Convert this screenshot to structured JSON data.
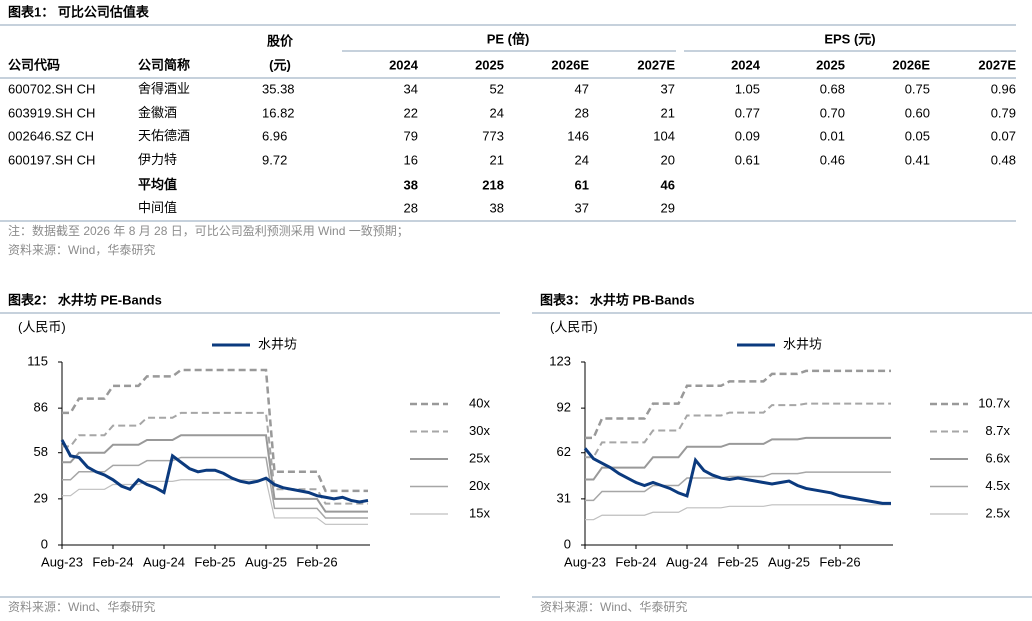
{
  "table": {
    "title": "图表1：  可比公司估值表",
    "group_headers": [
      "股价",
      "PE (倍)",
      "EPS (元)"
    ],
    "columns": [
      "公司代码",
      "公司简称",
      "(元)",
      "2024",
      "2025",
      "2026E",
      "2027E",
      "2024",
      "2025",
      "2026E",
      "2027E"
    ],
    "rows": [
      [
        "600702.SH CH",
        "舍得酒业",
        "35.38",
        "34",
        "52",
        "47",
        "37",
        "1.05",
        "0.68",
        "0.75",
        "0.96"
      ],
      [
        "603919.SH CH",
        "金徽酒",
        "16.82",
        "22",
        "24",
        "28",
        "21",
        "0.77",
        "0.70",
        "0.60",
        "0.79"
      ],
      [
        "002646.SZ CH",
        "天佑德酒",
        "6.96",
        "79",
        "773",
        "146",
        "104",
        "0.09",
        "0.01",
        "0.05",
        "0.07"
      ],
      [
        "600197.SH CH",
        "伊力特",
        "9.72",
        "16",
        "21",
        "24",
        "20",
        "0.61",
        "0.46",
        "0.41",
        "0.48"
      ],
      [
        null,
        "平均值",
        null,
        "38",
        "218",
        "61",
        "46",
        null,
        null,
        null,
        null
      ],
      [
        null,
        "中间值",
        null,
        "28",
        "38",
        "37",
        "29",
        null,
        null,
        null,
        null
      ]
    ],
    "note": "注：数据截至 2026 年 8 月 28 日，可比公司盈利预测采用 Wind 一致预期；",
    "source": "资料来源：Wind，华泰研究"
  },
  "chart_data": [
    {
      "type": "line",
      "title": "图表2：  水井坊 PE-Bands",
      "ylabel": "(人民币)",
      "legend": "right",
      "source": "资料来源：Wind、华泰研究",
      "categories": [
        "Aug-23",
        null,
        null,
        null,
        null,
        null,
        "Feb-24",
        null,
        null,
        null,
        null,
        null,
        "Aug-24",
        null,
        null,
        null,
        null,
        null,
        "Feb-25",
        null,
        null,
        null,
        null,
        null,
        "Aug-25",
        null,
        null,
        null,
        null,
        null,
        "Feb-26",
        null,
        null,
        null,
        null,
        null,
        null
      ],
      "ylim": [
        0,
        115
      ],
      "yticks": [
        0,
        29,
        58,
        86,
        115
      ],
      "series": [
        {
          "name": "水井坊",
          "color": "#0b3a7e",
          "style": "solid",
          "width": 3,
          "values": [
            66,
            56,
            55,
            49,
            46,
            44,
            41,
            37,
            35,
            41,
            38,
            36,
            33,
            56,
            52,
            48,
            46,
            47,
            47,
            45,
            42,
            40,
            39,
            40,
            42,
            38,
            36,
            35,
            34,
            33,
            31,
            30,
            29,
            30,
            28,
            27,
            28
          ]
        },
        {
          "name": "40x",
          "color": "#999999",
          "style": "dashed",
          "width": 2.5,
          "values": [
            83,
            83,
            92,
            92,
            92,
            92,
            100,
            100,
            100,
            100,
            106,
            106,
            106,
            106,
            110,
            110,
            110,
            110,
            110,
            110,
            110,
            110,
            110,
            110,
            110,
            46,
            46,
            46,
            46,
            46,
            46,
            34,
            34,
            34,
            34,
            34,
            34
          ]
        },
        {
          "name": "30x",
          "color": "#a6a6a6",
          "style": "dashed",
          "width": 2,
          "values": [
            62,
            62,
            69,
            69,
            69,
            69,
            75,
            75,
            75,
            75,
            80,
            80,
            80,
            80,
            83,
            83,
            83,
            83,
            83,
            83,
            83,
            83,
            83,
            83,
            83,
            35,
            35,
            35,
            35,
            35,
            35,
            26,
            26,
            26,
            26,
            26,
            26
          ]
        },
        {
          "name": "25x",
          "color": "#999999",
          "style": "solid",
          "width": 2,
          "values": [
            52,
            52,
            58,
            58,
            58,
            58,
            63,
            63,
            63,
            63,
            66,
            66,
            66,
            66,
            69,
            69,
            69,
            69,
            69,
            69,
            69,
            69,
            69,
            69,
            69,
            29,
            29,
            29,
            29,
            29,
            29,
            21,
            21,
            21,
            21,
            21,
            21
          ]
        },
        {
          "name": "20x",
          "color": "#a6a6a6",
          "style": "solid",
          "width": 1.5,
          "values": [
            41,
            41,
            46,
            46,
            46,
            46,
            50,
            50,
            50,
            50,
            53,
            53,
            53,
            53,
            55,
            55,
            55,
            55,
            55,
            55,
            55,
            55,
            55,
            55,
            55,
            23,
            23,
            23,
            23,
            23,
            23,
            17,
            17,
            17,
            17,
            17,
            17
          ]
        },
        {
          "name": "15x",
          "color": "#bfbfbf",
          "style": "solid",
          "width": 1.2,
          "values": [
            31,
            31,
            35,
            35,
            35,
            35,
            38,
            38,
            38,
            38,
            40,
            40,
            40,
            40,
            41,
            41,
            41,
            41,
            41,
            41,
            41,
            41,
            41,
            41,
            41,
            17,
            17,
            17,
            17,
            17,
            17,
            13,
            13,
            13,
            13,
            13,
            13
          ]
        }
      ]
    },
    {
      "type": "line",
      "title": "图表3：  水井坊 PB-Bands",
      "ylabel": "(人民币)",
      "legend": "right",
      "source": "资料来源：Wind、华泰研究",
      "categories": [
        "Aug-23",
        null,
        null,
        null,
        null,
        null,
        "Feb-24",
        null,
        null,
        null,
        null,
        null,
        "Aug-24",
        null,
        null,
        null,
        null,
        null,
        "Feb-25",
        null,
        null,
        null,
        null,
        null,
        "Aug-25",
        null,
        null,
        null,
        null,
        null,
        "Feb-26",
        null,
        null,
        null,
        null,
        null,
        null
      ],
      "ylim": [
        0,
        123
      ],
      "yticks": [
        0,
        31,
        62,
        92,
        123
      ],
      "series": [
        {
          "name": "水井坊",
          "color": "#0b3a7e",
          "style": "solid",
          "width": 3,
          "values": [
            65,
            58,
            55,
            52,
            48,
            45,
            42,
            40,
            42,
            40,
            38,
            35,
            33,
            57,
            50,
            47,
            45,
            44,
            45,
            44,
            43,
            42,
            41,
            42,
            43,
            40,
            38,
            37,
            36,
            35,
            33,
            32,
            31,
            30,
            29,
            28,
            28
          ]
        },
        {
          "name": "10.7x",
          "color": "#999999",
          "style": "dashed",
          "width": 2.5,
          "values": [
            72,
            72,
            85,
            85,
            85,
            85,
            85,
            85,
            95,
            95,
            95,
            95,
            107,
            107,
            107,
            107,
            107,
            110,
            110,
            110,
            110,
            110,
            115,
            115,
            115,
            115,
            117,
            117,
            117,
            117,
            117,
            117,
            117,
            117,
            117,
            117,
            117
          ]
        },
        {
          "name": "8.7x",
          "color": "#a6a6a6",
          "style": "dashed",
          "width": 2,
          "values": [
            59,
            59,
            69,
            69,
            69,
            69,
            69,
            69,
            77,
            77,
            77,
            77,
            87,
            87,
            87,
            87,
            87,
            89,
            89,
            89,
            89,
            89,
            94,
            94,
            94,
            94,
            95,
            95,
            95,
            95,
            95,
            95,
            95,
            95,
            95,
            95,
            95
          ]
        },
        {
          "name": "6.6x",
          "color": "#999999",
          "style": "solid",
          "width": 2,
          "values": [
            44,
            44,
            52,
            52,
            52,
            52,
            52,
            52,
            59,
            59,
            59,
            59,
            66,
            66,
            66,
            66,
            66,
            68,
            68,
            68,
            68,
            68,
            71,
            71,
            71,
            71,
            72,
            72,
            72,
            72,
            72,
            72,
            72,
            72,
            72,
            72,
            72
          ]
        },
        {
          "name": "4.5x",
          "color": "#a6a6a6",
          "style": "solid",
          "width": 1.5,
          "values": [
            30,
            30,
            36,
            36,
            36,
            36,
            36,
            36,
            40,
            40,
            40,
            40,
            45,
            45,
            45,
            45,
            45,
            46,
            46,
            46,
            46,
            46,
            48,
            48,
            48,
            48,
            49,
            49,
            49,
            49,
            49,
            49,
            49,
            49,
            49,
            49,
            49
          ]
        },
        {
          "name": "2.5x",
          "color": "#bfbfbf",
          "style": "solid",
          "width": 1.2,
          "values": [
            17,
            17,
            20,
            20,
            20,
            20,
            20,
            20,
            22,
            22,
            22,
            22,
            25,
            25,
            25,
            25,
            25,
            26,
            26,
            26,
            26,
            26,
            27,
            27,
            27,
            27,
            27,
            27,
            27,
            27,
            27,
            27,
            27,
            27,
            27,
            27,
            27
          ]
        }
      ]
    }
  ]
}
